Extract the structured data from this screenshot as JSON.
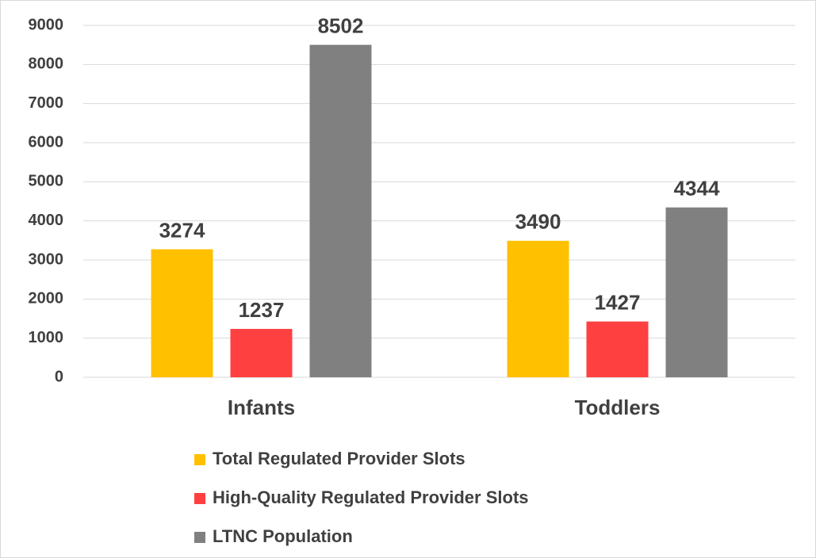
{
  "chart_data": {
    "type": "bar",
    "categories": [
      "Infants",
      "Toddlers"
    ],
    "series": [
      {
        "name": "Total Regulated Provider Slots",
        "color": "#FFC000",
        "values": [
          3274,
          3490
        ]
      },
      {
        "name": "High-Quality Regulated Provider Slots",
        "color": "#FF4040",
        "values": [
          1237,
          1427
        ]
      },
      {
        "name": "LTNC Population",
        "color": "#808080",
        "values": [
          8502,
          4344
        ]
      }
    ],
    "ylim": [
      0,
      9000
    ],
    "yticks": [
      0,
      1000,
      2000,
      3000,
      4000,
      5000,
      6000,
      7000,
      8000,
      9000
    ],
    "grid": true,
    "legend": "bottom"
  }
}
